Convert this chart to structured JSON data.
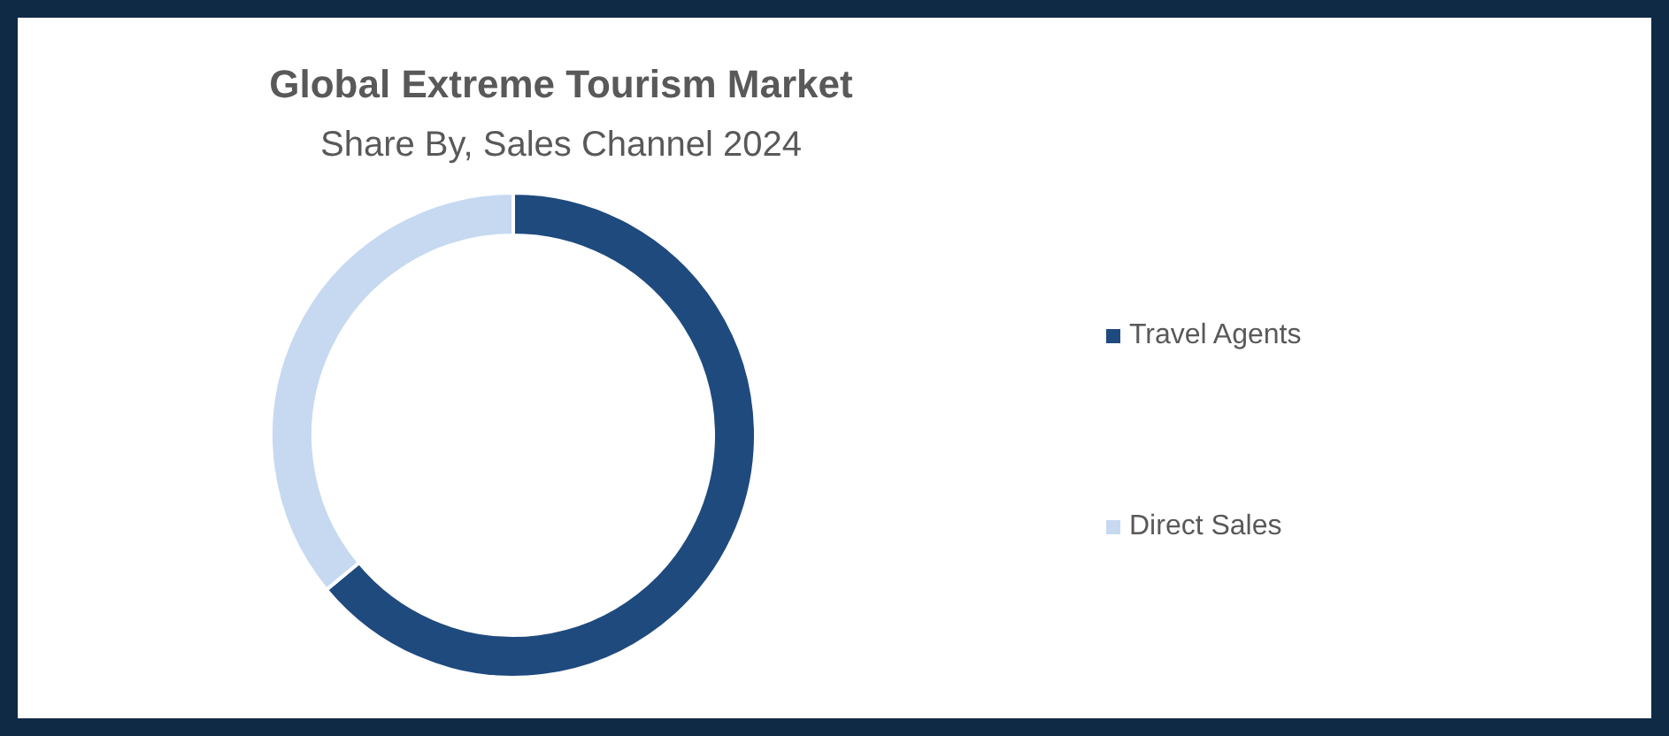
{
  "chart_data": {
    "type": "donut",
    "title": "Global Extreme Tourism Market",
    "subtitle": "Share By, Sales Channel 2024",
    "categories": [
      "Travel Agents",
      "Direct Sales"
    ],
    "values": [
      64,
      36
    ],
    "colors": [
      "#1f4a7e",
      "#c6d9f1"
    ],
    "legend": "right"
  }
}
